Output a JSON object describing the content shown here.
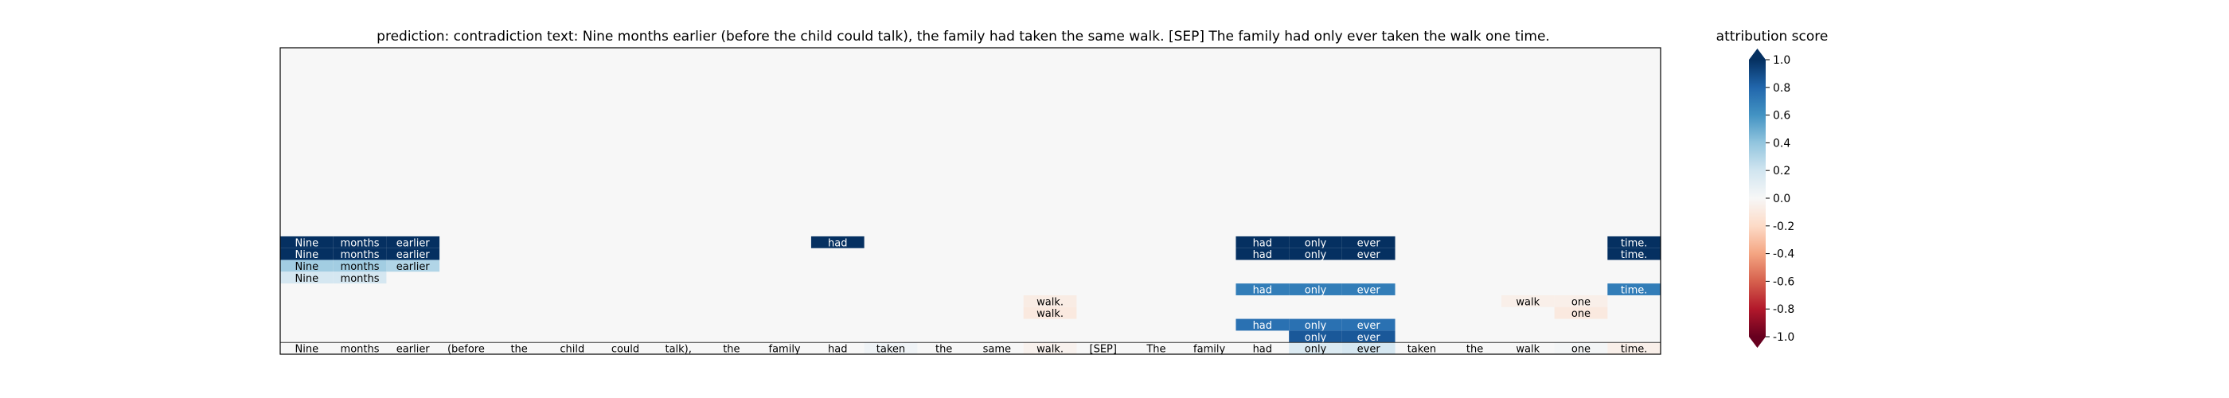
{
  "chart_data": {
    "type": "heatmap",
    "title": "prediction:  contradiction      text:  Nine months earlier (before the child could talk), the family had taken the same walk. [SEP] The family had only ever taken the walk one time.",
    "tokens": [
      "Nine",
      "months",
      "earlier",
      "(before",
      "the",
      "child",
      "could",
      "talk),",
      "the",
      "family",
      "had",
      "taken",
      "the",
      "same",
      "walk.",
      "[SEP]",
      "The",
      "family",
      "had",
      "only",
      "ever",
      "taken",
      "the",
      "walk",
      "one",
      "time."
    ],
    "n_rows": 26,
    "row_values": [
      {
        "row": 16,
        "cells": [
          [
            0,
            1.0
          ],
          [
            1,
            1.0
          ],
          [
            2,
            1.0
          ],
          [
            10,
            1.0
          ],
          [
            18,
            1.0
          ],
          [
            19,
            1.0
          ],
          [
            20,
            1.0
          ],
          [
            25,
            1.0
          ]
        ]
      },
      {
        "row": 17,
        "cells": [
          [
            0,
            1.0
          ],
          [
            1,
            1.0
          ],
          [
            2,
            1.0
          ],
          [
            18,
            1.0
          ],
          [
            19,
            1.0
          ],
          [
            20,
            1.0
          ],
          [
            25,
            1.0
          ]
        ]
      },
      {
        "row": 18,
        "cells": [
          [
            0,
            0.35
          ],
          [
            1,
            0.35
          ],
          [
            2,
            0.3
          ]
        ]
      },
      {
        "row": 19,
        "cells": [
          [
            0,
            0.18
          ],
          [
            1,
            0.18
          ]
        ]
      },
      {
        "row": 20,
        "cells": [
          [
            18,
            0.7
          ],
          [
            19,
            0.7
          ],
          [
            20,
            0.7
          ],
          [
            25,
            0.7
          ]
        ]
      },
      {
        "row": 21,
        "cells": [
          [
            14,
            -0.08
          ],
          [
            23,
            -0.06
          ],
          [
            24,
            -0.06
          ]
        ]
      },
      {
        "row": 22,
        "cells": [
          [
            14,
            -0.1
          ],
          [
            24,
            -0.1
          ]
        ]
      },
      {
        "row": 23,
        "cells": [
          [
            18,
            0.75
          ],
          [
            19,
            0.75
          ],
          [
            20,
            0.75
          ]
        ]
      },
      {
        "row": 24,
        "cells": [
          [
            19,
            0.85
          ],
          [
            20,
            0.85
          ]
        ]
      },
      {
        "row": 25,
        "cells": [
          [
            11,
            0.04
          ],
          [
            14,
            -0.04
          ],
          [
            19,
            0.15
          ],
          [
            20,
            0.18
          ],
          [
            24,
            0.02
          ],
          [
            25,
            -0.06
          ]
        ]
      }
    ],
    "colorbar": {
      "label": "attribution score",
      "min": -1.0,
      "max": 1.0,
      "ticks": [
        "-1.0",
        "-0.8",
        "-0.6",
        "-0.4",
        "-0.2",
        "0.0",
        "0.2",
        "0.4",
        "0.6",
        "0.8",
        "1.0"
      ],
      "tick_values": [
        -1.0,
        -0.8,
        -0.6,
        -0.4,
        -0.2,
        0.0,
        0.2,
        0.4,
        0.6,
        0.8,
        1.0
      ]
    },
    "colormap": "RdBu"
  }
}
